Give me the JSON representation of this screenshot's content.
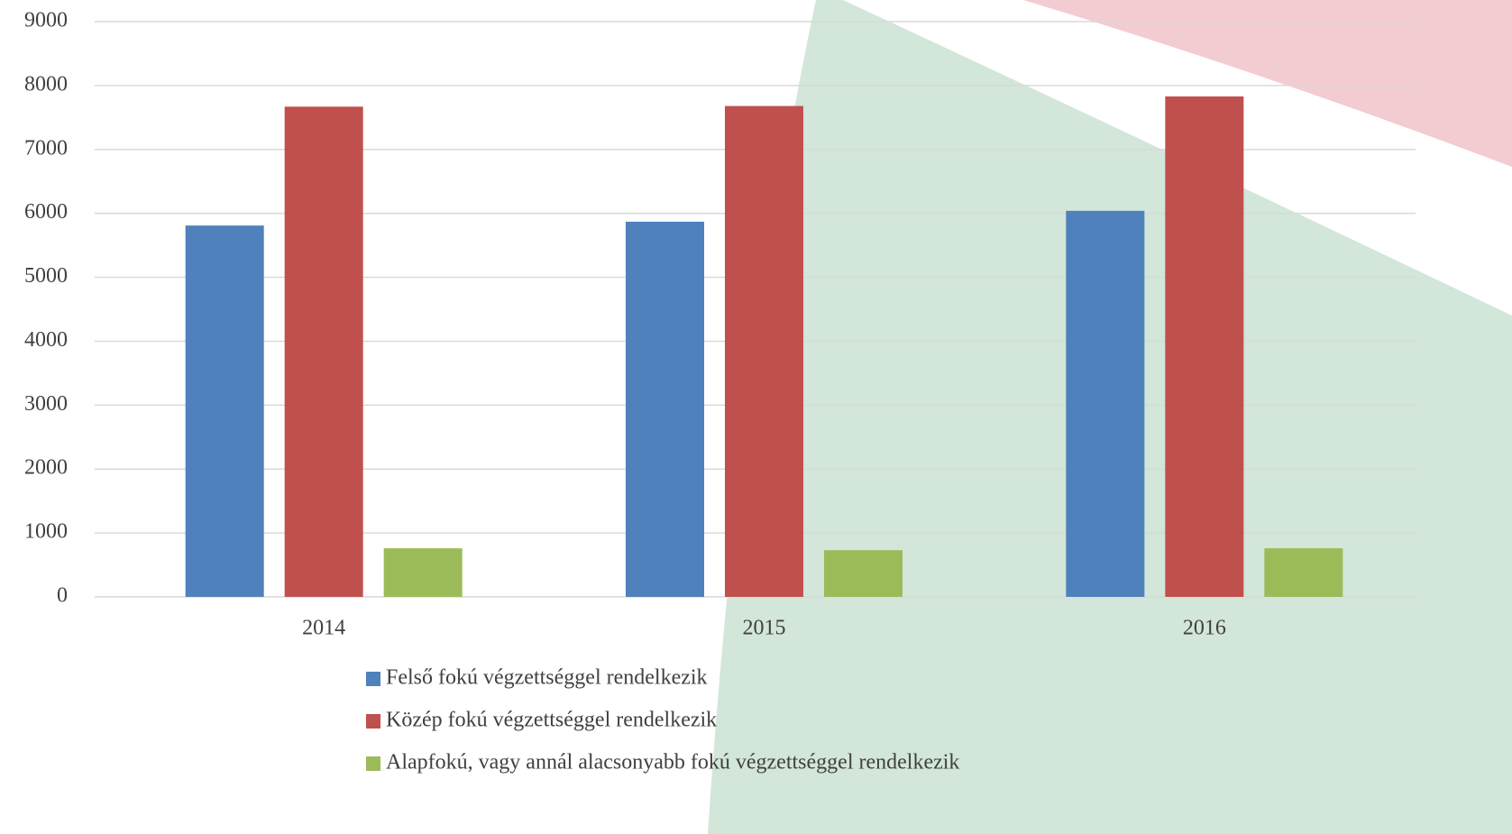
{
  "chart_data": {
    "type": "bar",
    "categories": [
      "2014",
      "2015",
      "2016"
    ],
    "series": [
      {
        "name": "Felső fokú végzettséggel rendelkezik",
        "color": "#4f81bd",
        "values": [
          5810,
          5870,
          6040
        ]
      },
      {
        "name": "Közép fokú végzettséggel rendelkezik",
        "color": "#c0504d",
        "values": [
          7670,
          7680,
          7830
        ]
      },
      {
        "name": "Alapfokú, vagy annál alacsonyabb fokú végzettséggel rendelkezik",
        "color": "#9bbb59",
        "values": [
          760,
          730,
          760
        ]
      }
    ],
    "ylim": [
      0,
      9000
    ],
    "yticks": [
      0,
      1000,
      2000,
      3000,
      4000,
      5000,
      6000,
      7000,
      8000,
      9000
    ],
    "grid": true,
    "legend": "bottom"
  }
}
